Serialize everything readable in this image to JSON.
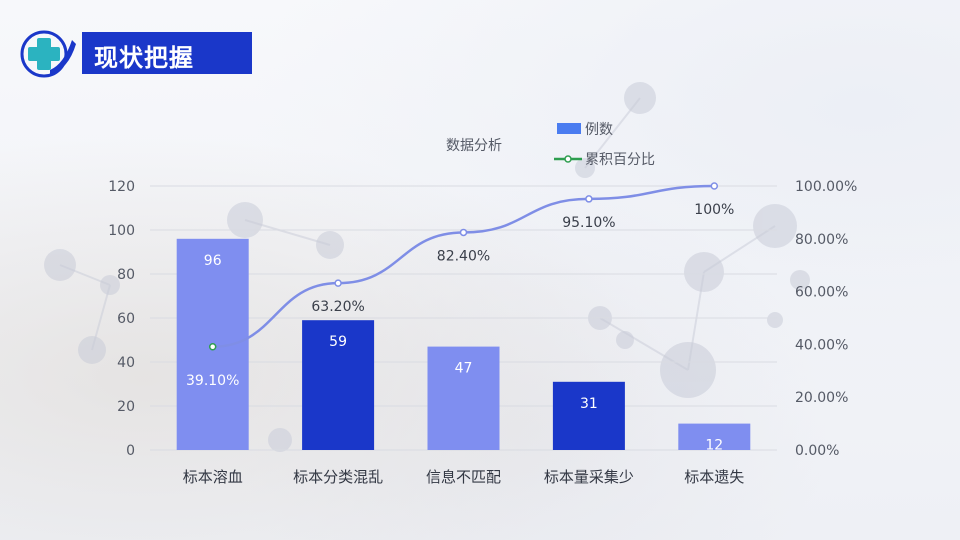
{
  "header": {
    "title": "现状把握"
  },
  "chart_data": {
    "type": "bar",
    "title": "数据分析",
    "categories": [
      "标本溶血",
      "标本分类混乱",
      "信息不匹配",
      "标本量采集少",
      "标本遗失"
    ],
    "series": [
      {
        "name": "例数",
        "type": "bar",
        "values": [
          96,
          59,
          47,
          31,
          12
        ]
      },
      {
        "name": "累积百分比",
        "type": "line",
        "axis": "right",
        "values": [
          39.1,
          63.2,
          82.4,
          95.1,
          100
        ],
        "labels": [
          "39.10%",
          "63.20%",
          "82.40%",
          "95.10%",
          "100%"
        ]
      }
    ],
    "bar_labels": [
      "96",
      "59",
      "47",
      "31",
      "12"
    ],
    "ylim": [
      0,
      120
    ],
    "y_ticks": [
      "0",
      "20",
      "40",
      "60",
      "80",
      "100",
      "120"
    ],
    "y2lim": [
      0,
      100
    ],
    "y2_ticks": [
      "0.00%",
      "20.00%",
      "40.00%",
      "60.00%",
      "80.00%",
      "100.00%"
    ],
    "grid": true,
    "legend_position": "top",
    "colors": {
      "bar_light": "#7f8ef0",
      "bar_dark": "#1a37c9",
      "line": "#7f8ee6",
      "legend_line": "#2e9e4f",
      "grid": "#d9dbe2"
    }
  }
}
